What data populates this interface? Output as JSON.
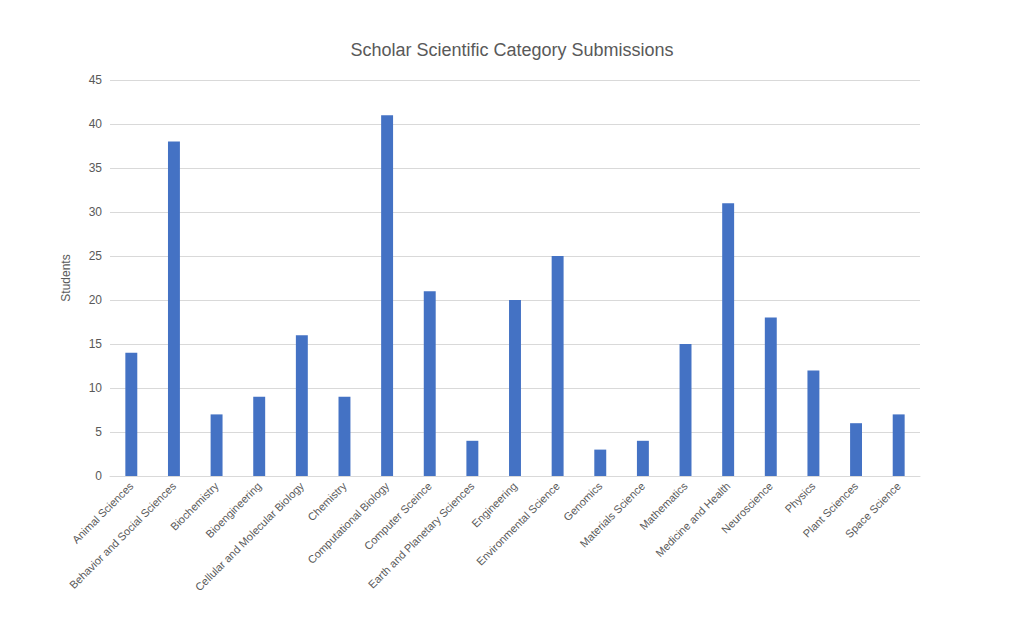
{
  "chart_data": {
    "type": "bar",
    "title": "Scholar Scientific Category Submissions",
    "y_label": "Students",
    "categories": [
      "Animal Sciences",
      "Behavior and Social Sciences",
      "Biochemistry",
      "Bioengineering",
      "Cellular and Molecular Biology",
      "Chemistry",
      "Computational Biology",
      "Computer Sceince",
      "Earth and Planetary Sciences",
      "Engineering",
      "Environmental Science",
      "Genomics",
      "Materials Science",
      "Mathematics",
      "Medicine and Health",
      "Neuroscience",
      "Physics",
      "Plant Sciences",
      "Space Science"
    ],
    "values": [
      14,
      38,
      7,
      9,
      16,
      9,
      41,
      21,
      4,
      20,
      25,
      3,
      4,
      15,
      31,
      18,
      12,
      6,
      7
    ],
    "color": "#4472c4",
    "ylim": [
      0,
      45
    ],
    "yticks": [
      0,
      5,
      10,
      15,
      20,
      25,
      30,
      35,
      40,
      45
    ],
    "grid": true
  }
}
